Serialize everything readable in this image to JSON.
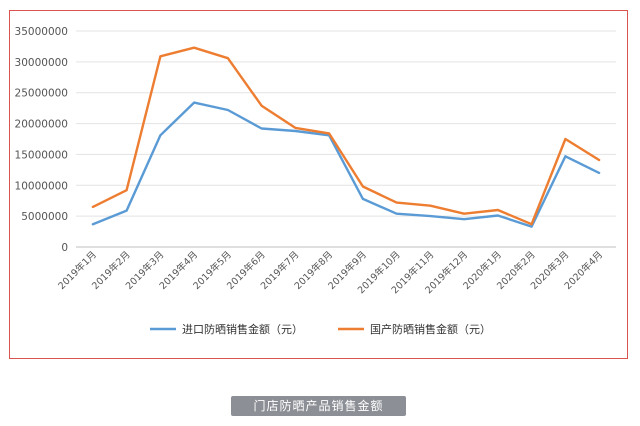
{
  "caption": "门店防晒产品销售金额",
  "chart_data": {
    "type": "line",
    "title": "",
    "xlabel": "",
    "ylabel": "",
    "categories": [
      "2019年1月",
      "2019年2月",
      "2019年3月",
      "2019年4月",
      "2019年5月",
      "2019年6月",
      "2019年7月",
      "2019年8月",
      "2019年9月",
      "2019年10月",
      "2019年11月",
      "2019年12月",
      "2020年1月",
      "2020年2月",
      "2020年3月",
      "2020年4月"
    ],
    "ylim": [
      0,
      35000000
    ],
    "yticks": [
      "0",
      "5000000",
      "10000000",
      "15000000",
      "20000000",
      "25000000",
      "30000000",
      "35000000"
    ],
    "grid": true,
    "legend_position": "bottom",
    "series": [
      {
        "name": "进口防晒销售金额（元）",
        "color": "#5b9bd5",
        "values": [
          3700000,
          5900000,
          18100000,
          23400000,
          22200000,
          19200000,
          18800000,
          18100000,
          7800000,
          5400000,
          5000000,
          4500000,
          5100000,
          3300000,
          14700000,
          12000000
        ]
      },
      {
        "name": "国产防晒销售金额（元）",
        "color": "#ed7d31",
        "values": [
          6500000,
          9200000,
          30900000,
          32300000,
          30600000,
          22900000,
          19300000,
          18400000,
          9800000,
          7200000,
          6700000,
          5400000,
          6000000,
          3700000,
          17500000,
          14100000
        ]
      }
    ]
  }
}
